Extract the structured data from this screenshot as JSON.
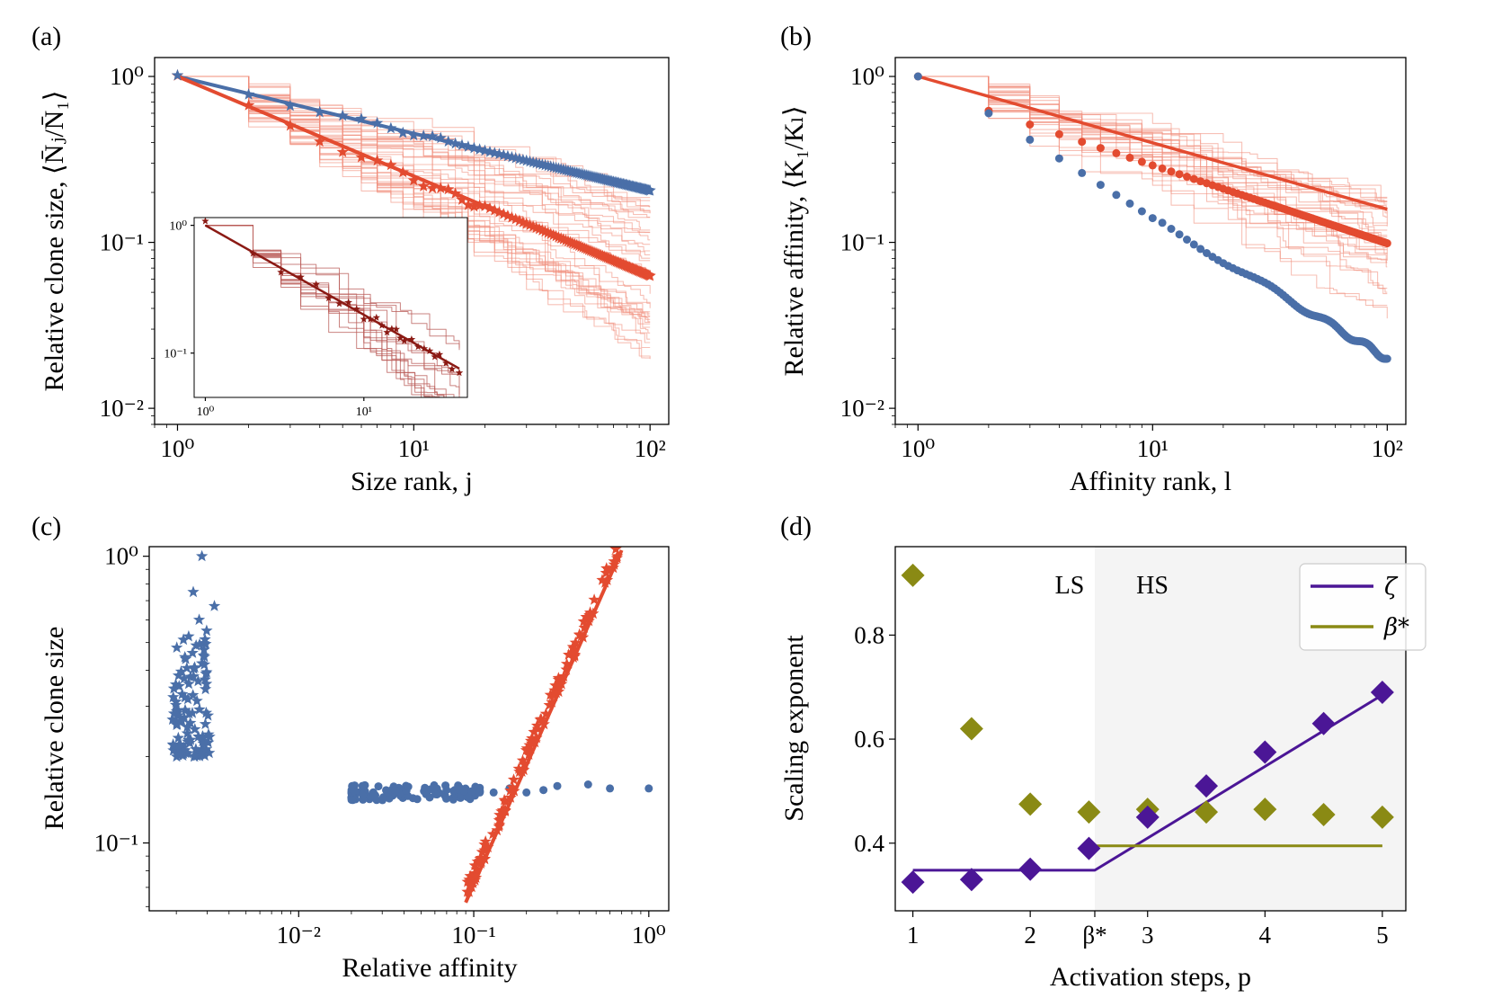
{
  "colors": {
    "blue": "#4a6fa8",
    "red": "#e34b30",
    "red_light": "#f08c7a",
    "darkred": "#8b1a14",
    "darkred_light": "#b85a55",
    "purple": "#4b1696",
    "olive": "#8a8a14",
    "shade": "#f4f4f4"
  },
  "panel_a": {
    "label": "(a)",
    "ylabel": "Relative clone size, ⟨N̄ⱼ/N̄₁⟩",
    "xlabel": "Size rank,  j",
    "xticks": [
      "10⁰",
      "10¹",
      "10²"
    ],
    "yticks": [
      "10⁰",
      "10⁻¹",
      "10⁻²"
    ],
    "inset_xticks": [
      "10⁰",
      "10¹"
    ],
    "inset_yticks": [
      "10⁰",
      "10⁻¹"
    ]
  },
  "panel_b": {
    "label": "(b)",
    "ylabel": "Relative affinity, ⟨K₁/Kₗ⟩",
    "xlabel": "Affinity rank, l",
    "xticks": [
      "10⁰",
      "10¹",
      "10²"
    ],
    "yticks": [
      "10⁰",
      "10⁻¹",
      "10⁻²"
    ]
  },
  "panel_c": {
    "label": "(c)",
    "ylabel": "Relative clone size",
    "xlabel": "Relative affinity",
    "xticks": [
      "10⁻²",
      "10⁻¹",
      "10⁰"
    ],
    "yticks": [
      "10⁰",
      "10⁻¹"
    ]
  },
  "panel_d": {
    "label": "(d)",
    "ylabel": "Scaling exponent",
    "xlabel": "Activation steps, p",
    "xticks": [
      "1",
      "2",
      "β*",
      "3",
      "4",
      "5"
    ],
    "yticks": [
      "0.4",
      "0.6",
      "0.8"
    ],
    "region_low": "LS",
    "region_high": "HS",
    "legend": [
      "ζ",
      "β*"
    ]
  },
  "chart_data": [
    {
      "type": "line",
      "panel": "a",
      "title": "",
      "xlabel": "Size rank, j",
      "ylabel": "Relative clone size, ⟨N̄ⱼ/N̄₁⟩",
      "xscale": "log",
      "yscale": "log",
      "xlim": [
        0.8,
        120
      ],
      "ylim": [
        0.008,
        1.3
      ],
      "series": [
        {
          "name": "blue stars (mean)",
          "marker": "star",
          "color": "blue",
          "exponent": -0.344,
          "x_range": [
            1,
            100
          ]
        },
        {
          "name": "blue fit",
          "marker": "none",
          "color": "blue",
          "exponent": -0.344,
          "x_range": [
            1,
            100
          ]
        },
        {
          "name": "red stars (mean)",
          "marker": "star",
          "color": "red",
          "exponent": -0.601,
          "x_range": [
            1,
            100
          ]
        },
        {
          "name": "red fit",
          "marker": "none",
          "color": "red",
          "exponent": -0.601,
          "x_range": [
            1,
            100
          ]
        },
        {
          "name": "individual realizations",
          "marker": "none",
          "color": "red_light",
          "count": 40
        }
      ],
      "inset": {
        "xscale": "log",
        "yscale": "log",
        "xlim": [
          0.85,
          45
        ],
        "ylim": [
          0.045,
          1.15
        ],
        "series": [
          {
            "name": "dark red stars",
            "marker": "star",
            "color": "darkred",
            "exponent": -0.7,
            "x_range": [
              1,
              40
            ]
          },
          {
            "name": "fit",
            "marker": "none",
            "color": "darkred",
            "exponent": -0.7,
            "x_range": [
              1,
              40
            ]
          }
        ]
      }
    },
    {
      "type": "scatter",
      "panel": "b",
      "title": "",
      "xlabel": "Affinity rank, l",
      "ylabel": "Relative affinity, ⟨K₁/Kₗ⟩",
      "xscale": "log",
      "yscale": "log",
      "xlim": [
        0.8,
        120
      ],
      "ylim": [
        0.008,
        1.3
      ],
      "series": [
        {
          "name": "blue dots",
          "marker": "circle",
          "color": "blue",
          "x_range": [
            1,
            100
          ],
          "y_at_x10": 0.14,
          "y_end": 0.02,
          "y_at_x2": 0.6
        },
        {
          "name": "red dots",
          "marker": "circle",
          "color": "red",
          "exponent": -0.47,
          "x_range": [
            1,
            100
          ]
        },
        {
          "name": "red fit",
          "marker": "none",
          "color": "red",
          "exponent": -0.4,
          "x_range": [
            1,
            100
          ]
        },
        {
          "name": "individual realizations",
          "marker": "none",
          "color": "red_light",
          "count": 30
        }
      ]
    },
    {
      "type": "scatter",
      "panel": "c",
      "title": "",
      "xlabel": "Relative affinity",
      "ylabel": "Relative clone size",
      "xscale": "log",
      "yscale": "log",
      "xlim": [
        0.0014,
        1.3
      ],
      "ylim": [
        0.058,
        1.08
      ],
      "series": [
        {
          "name": "blue stars",
          "marker": "star",
          "color": "blue",
          "x_range": [
            0.0018,
            0.0035
          ],
          "y_range": [
            0.2,
            1.0
          ]
        },
        {
          "name": "blue dots",
          "marker": "circle",
          "color": "blue",
          "x_range": [
            0.02,
            1.0
          ],
          "y_approx": 0.15
        },
        {
          "name": "red stars",
          "marker": "star",
          "color": "red",
          "x_range": [
            0.09,
            0.66
          ],
          "y_range": [
            0.072,
            1.0
          ]
        },
        {
          "name": "red fit",
          "marker": "none",
          "color": "red",
          "points": [
            [
              0.09,
              0.062
            ],
            [
              0.7,
              1.05
            ]
          ]
        }
      ]
    },
    {
      "type": "scatter",
      "panel": "d",
      "title": "",
      "xlabel": "Activation steps, p",
      "ylabel": "Scaling exponent",
      "xlim": [
        0.85,
        5.2
      ],
      "ylim": [
        0.27,
        0.97
      ],
      "beta_star": 2.55,
      "series": [
        {
          "name": "ζ",
          "marker": "diamond",
          "color": "purple",
          "x": [
            1,
            1.5,
            2,
            2.5,
            3,
            3.5,
            4,
            4.5,
            5
          ],
          "y": [
            0.325,
            0.33,
            0.35,
            0.39,
            0.45,
            0.51,
            0.575,
            0.63,
            0.69
          ]
        },
        {
          "name": "β*",
          "marker": "diamond",
          "color": "olive",
          "x": [
            1,
            1.5,
            2,
            2.5,
            3,
            3.5,
            4,
            4.5,
            5
          ],
          "y": [
            0.915,
            0.62,
            0.475,
            0.46,
            0.465,
            0.46,
            0.465,
            0.455,
            0.45
          ]
        },
        {
          "name": "ζ fit",
          "marker": "none",
          "color": "purple",
          "points": [
            [
              1,
              0.348
            ],
            [
              2.55,
              0.348
            ],
            [
              5,
              0.685
            ]
          ]
        },
        {
          "name": "β* fit",
          "marker": "none",
          "color": "olive",
          "points": [
            [
              2.55,
              0.395
            ],
            [
              5,
              0.395
            ]
          ]
        }
      ]
    }
  ]
}
